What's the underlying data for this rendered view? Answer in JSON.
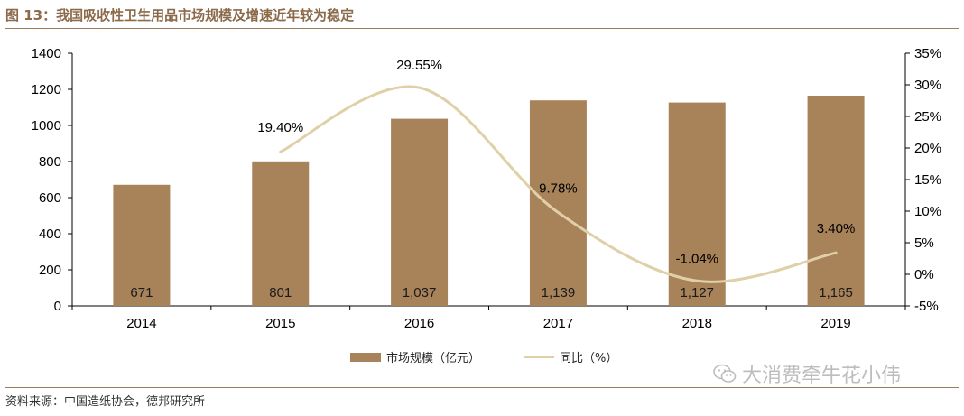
{
  "figure": {
    "title": "图 13：我国吸收性卫生用品市场规模及增速近年较为稳定",
    "source": "资料来源：中国造纸协会，德邦研究所",
    "watermark": "大消费牵牛花小伟"
  },
  "colors": {
    "bar": "#A8835A",
    "line": "#E0D0A8",
    "accent": "#8B6A4A"
  },
  "chart_data": {
    "type": "bar",
    "categories": [
      "2014",
      "2015",
      "2016",
      "2017",
      "2018",
      "2019"
    ],
    "series": [
      {
        "name": "市场规模（亿元）",
        "type": "bar",
        "axis": "left",
        "values": [
          671,
          801,
          1037,
          1139,
          1127,
          1165
        ],
        "labels": [
          "671",
          "801",
          "1,037",
          "1,139",
          "1,127",
          "1,165"
        ]
      },
      {
        "name": "同比（%）",
        "type": "line",
        "axis": "right",
        "x": [
          "2015",
          "2016",
          "2017",
          "2018",
          "2019"
        ],
        "values": [
          19.4,
          29.55,
          9.78,
          -1.04,
          3.4
        ],
        "labels": [
          "19.40%",
          "29.55%",
          "9.78%",
          "-1.04%",
          "3.40%"
        ]
      }
    ],
    "yleft": {
      "lim": [
        0,
        1400
      ],
      "ticks": [
        "0",
        "200",
        "400",
        "600",
        "800",
        "1000",
        "1200",
        "1400"
      ]
    },
    "yright": {
      "lim": [
        -5,
        35
      ],
      "ticks": [
        "-5%",
        "0%",
        "5%",
        "10%",
        "15%",
        "20%",
        "25%",
        "30%",
        "35%"
      ]
    },
    "legend": {
      "position": "bottom-center",
      "bar_label": "市场规模（亿元）",
      "line_label": "同比（%）"
    },
    "grid": false
  }
}
